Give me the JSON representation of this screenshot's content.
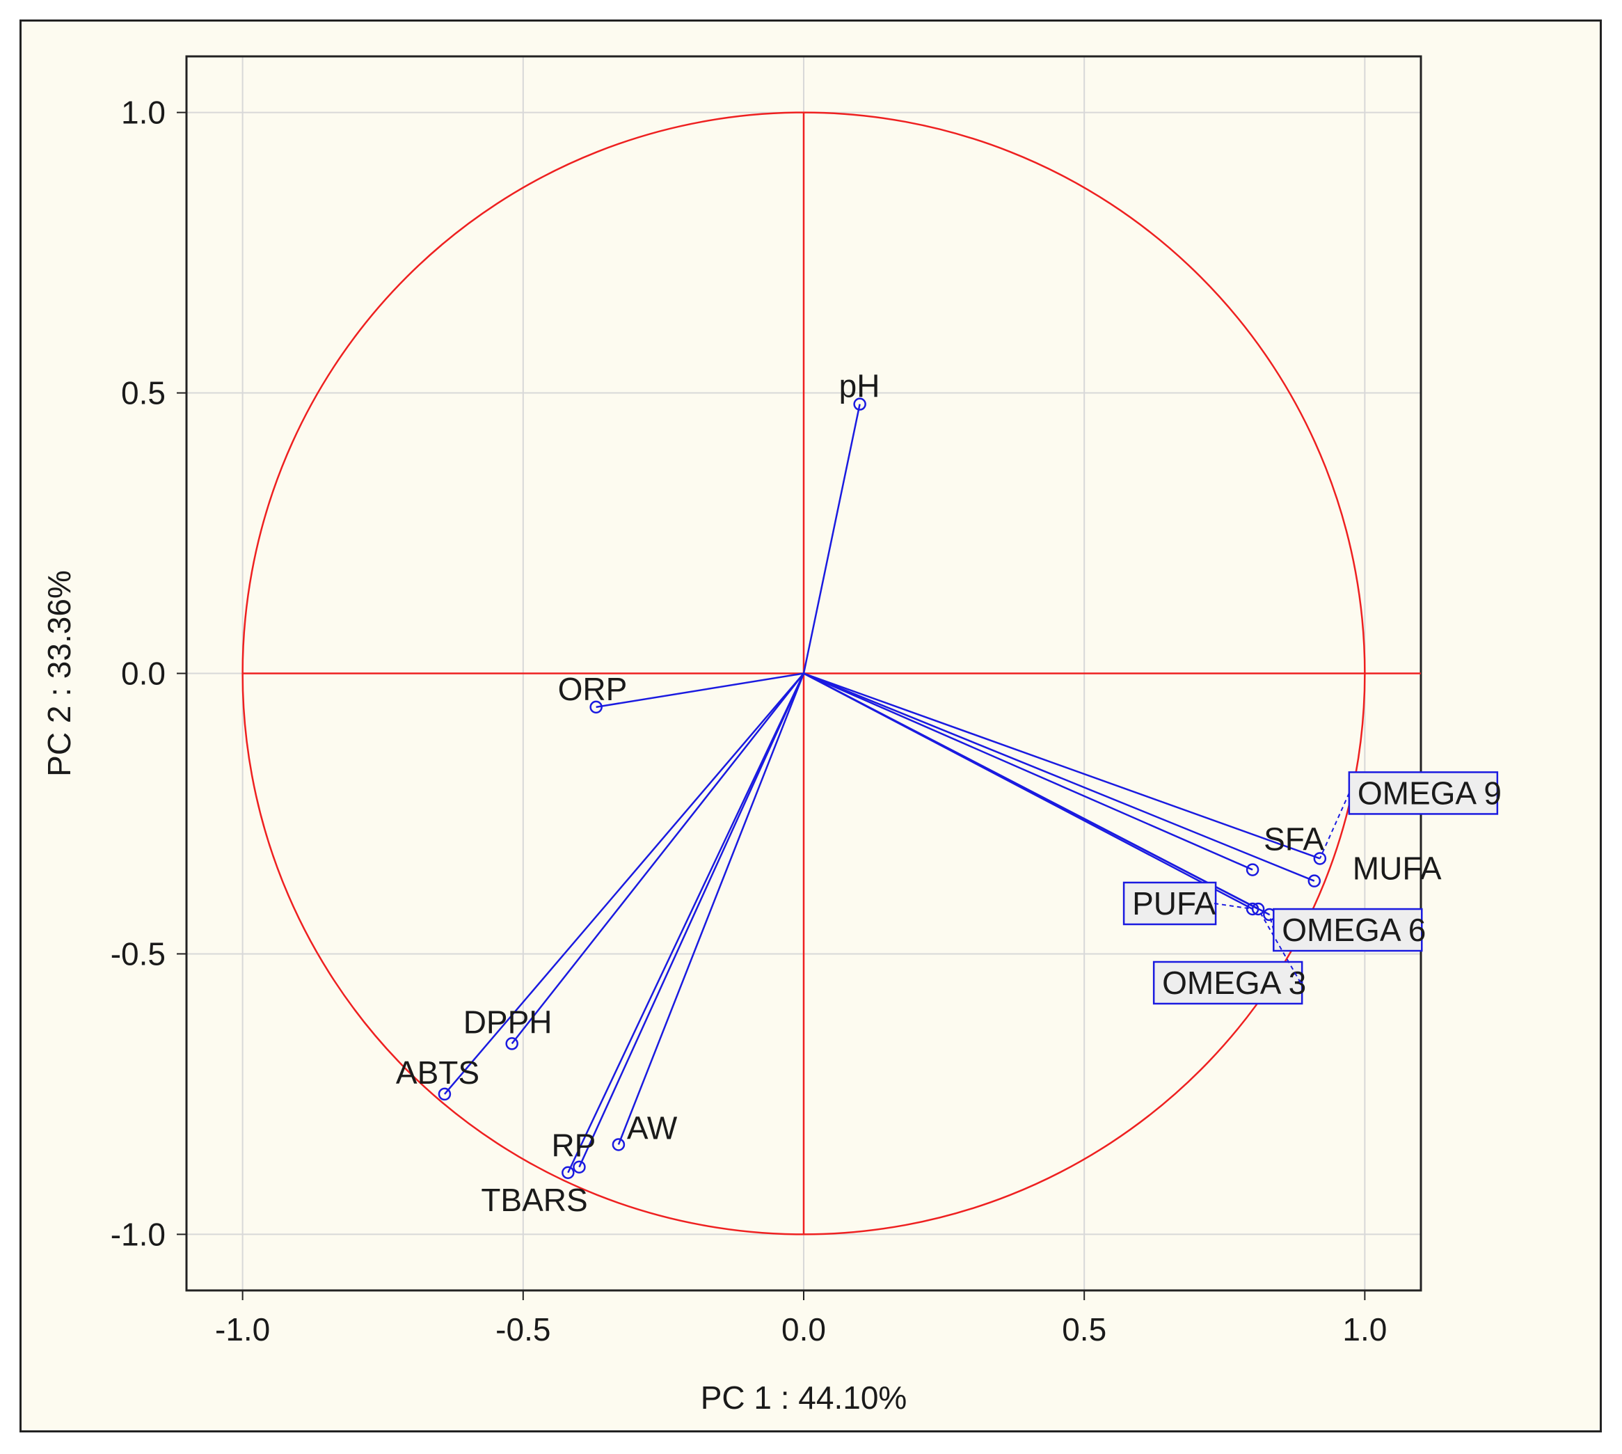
{
  "chart_data": {
    "type": "scatter",
    "subtype": "pca-loadings-biplot",
    "xlabel": "PC 1 : 44.10%",
    "ylabel": "PC  2 : 33.36%",
    "xlim": [
      -1.1,
      1.1
    ],
    "ylim": [
      -1.1,
      1.1
    ],
    "xticks": [
      "-1.0",
      "-0.5",
      "0.0",
      "0.5",
      "1.0"
    ],
    "yticks": [
      "1.0",
      "0.5",
      "0.0",
      "-0.5",
      "-1.0"
    ],
    "grid": true,
    "unit_circle": true,
    "colors": {
      "circle": "#ee2020",
      "vectors": "#1a1ae0",
      "grid": "#d8d8d8",
      "box_fill": "#eeeeee"
    },
    "points": [
      {
        "name": "pH",
        "x": 0.1,
        "y": 0.48,
        "boxed": false
      },
      {
        "name": "ORP",
        "x": -0.37,
        "y": -0.06,
        "boxed": false
      },
      {
        "name": "DPPH",
        "x": -0.52,
        "y": -0.66,
        "boxed": false
      },
      {
        "name": "ABTS",
        "x": -0.64,
        "y": -0.75,
        "boxed": false
      },
      {
        "name": "RP",
        "x": -0.4,
        "y": -0.88,
        "boxed": false
      },
      {
        "name": "TBARS",
        "x": -0.42,
        "y": -0.89,
        "boxed": false
      },
      {
        "name": "AW",
        "x": -0.33,
        "y": -0.84,
        "boxed": false
      },
      {
        "name": "SFA",
        "x": 0.8,
        "y": -0.35,
        "boxed": false
      },
      {
        "name": "OMEGA 9",
        "x": 0.92,
        "y": -0.33,
        "boxed": true
      },
      {
        "name": "MUFA",
        "x": 0.91,
        "y": -0.37,
        "boxed": false
      },
      {
        "name": "PUFA",
        "x": 0.8,
        "y": -0.42,
        "boxed": true
      },
      {
        "name": "OMEGA 6",
        "x": 0.83,
        "y": -0.43,
        "boxed": true
      },
      {
        "name": "OMEGA 3",
        "x": 0.81,
        "y": -0.42,
        "boxed": true
      }
    ]
  }
}
